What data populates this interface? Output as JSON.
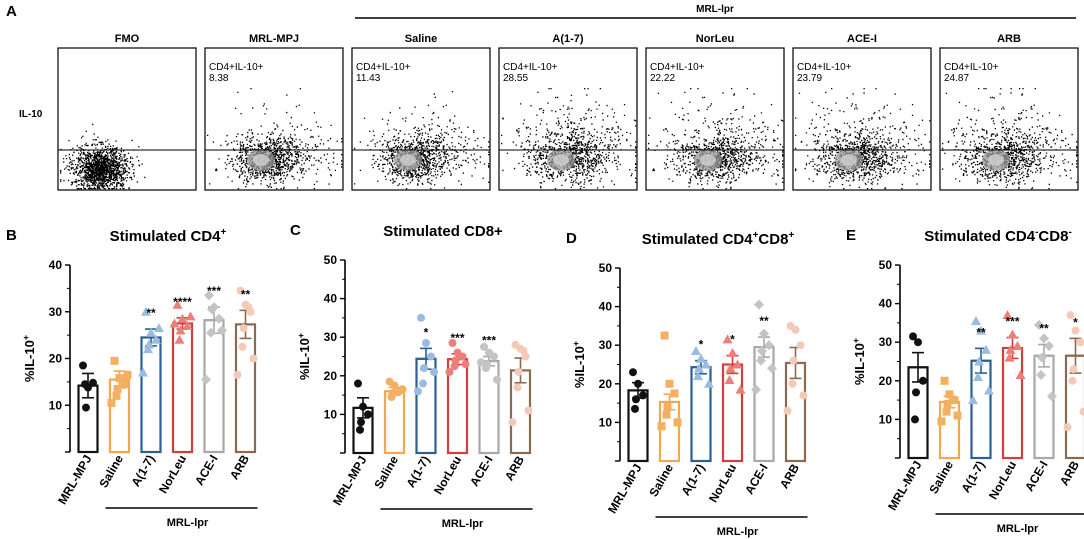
{
  "figure": {
    "panel_a_letter": "A",
    "group_label": "MRL-lpr",
    "y_label": "IL-10",
    "flow_panels": [
      {
        "title": "FMO",
        "gate": "",
        "value": ""
      },
      {
        "title": "MRL-MPJ",
        "gate": "CD4+IL-10+",
        "value": "8.38"
      },
      {
        "title": "Saline",
        "gate": "CD4+IL-10+",
        "value": "11.43"
      },
      {
        "title": "A(1-7)",
        "gate": "CD4+IL-10+",
        "value": "28.55"
      },
      {
        "title": "NorLeu",
        "gate": "CD4+IL-10+",
        "value": "22.22"
      },
      {
        "title": "ACE-I",
        "gate": "CD4+IL-10+",
        "value": "23.79"
      },
      {
        "title": "ARB",
        "gate": "CD4+IL-10+",
        "value": "24.87"
      }
    ]
  },
  "colors": {
    "MRL-MPJ": "#111111",
    "Saline": "#f3a84f",
    "A(1-7)": "#2c5f95",
    "NorLeu": "#d23d3d",
    "ACE-I": "#a8a8a8",
    "ARB": "#8c6a52"
  },
  "marker_colors": {
    "MRL-MPJ": "#111111",
    "Saline": "#f3b062",
    "A(1-7)": "#9bbbe0",
    "NorLeu": "#ec7f7a",
    "ACE-I": "#c4c4c4",
    "ARB": "#f3c9b8"
  },
  "chart_data": [
    {
      "type": "bar",
      "letter": "B",
      "title": "Stimulated CD4",
      "title_sup": "+",
      "ylabel": "%IL-10",
      "ylabel_sup": "+",
      "ylim": [
        0,
        40
      ],
      "yticks": [
        10,
        20,
        30,
        40
      ],
      "categories": [
        "MRL-MPJ",
        "Saline",
        "A(1-7)",
        "NorLeu",
        "ACE-I",
        "ARB"
      ],
      "group_label": "MRL-lpr",
      "values": [
        14.2,
        15.5,
        24.5,
        27.5,
        28.2,
        27.3
      ],
      "errors": [
        2.6,
        1.8,
        1.8,
        1.2,
        2.8,
        3.0
      ],
      "significance": [
        "",
        "",
        "**",
        "****",
        "***",
        "**"
      ],
      "points": [
        [
          18.5,
          13.8,
          14.8,
          9.5,
          14.5
        ],
        [
          19.5,
          15.8,
          14.5,
          13.5,
          12.0,
          16.5,
          10.5
        ],
        [
          30.0,
          25.5,
          24.0,
          23.0,
          22.0,
          26.5,
          17.0
        ],
        [
          31.5,
          28.5,
          27.0,
          26.0,
          24.0,
          29.0,
          27.5
        ],
        [
          33.5,
          31.0,
          28.5,
          30.5,
          25.5,
          26.0,
          15.5
        ],
        [
          34.5,
          31.5,
          30.0,
          26.5,
          22.5,
          20.0,
          16.5,
          31.0
        ]
      ],
      "markers": [
        "circle",
        "square",
        "triangle",
        "triangle",
        "diamond",
        "circle"
      ]
    },
    {
      "type": "bar",
      "letter": "C",
      "title": "Stimulated CD8+",
      "title_sup": "",
      "ylabel": "%IL-10",
      "ylabel_sup": "+",
      "ylim": [
        0,
        50
      ],
      "yticks": [
        10,
        20,
        30,
        40,
        50
      ],
      "categories": [
        "MRL-MPJ",
        "Saline",
        "A(1-7)",
        "NorLeu",
        "ACE-I",
        "ARB"
      ],
      "group_label": "MRL-lpr",
      "values": [
        11.7,
        16.0,
        24.4,
        24.3,
        23.8,
        21.4
      ],
      "errors": [
        2.6,
        1.0,
        2.7,
        1.4,
        1.2,
        3.2
      ],
      "significance": [
        "",
        "",
        "*",
        "***",
        "***",
        ""
      ],
      "points": [
        [
          18.0,
          12.0,
          10.0,
          8.0,
          6.0
        ],
        [
          18.5,
          17.5,
          16.0,
          15.5,
          14.5,
          16.5
        ],
        [
          35.0,
          28.5,
          25.0,
          22.0,
          18.0,
          21.0,
          16.0
        ],
        [
          28.5,
          26.0,
          25.0,
          24.0,
          22.5,
          23.0,
          21.0
        ],
        [
          27.5,
          26.0,
          25.0,
          23.0,
          22.0,
          19.0,
          23.5
        ],
        [
          28.0,
          27.0,
          25.0,
          21.0,
          17.0,
          11.0,
          8.0,
          26.5
        ]
      ],
      "markers": [
        "circle",
        "circle",
        "circle",
        "circle",
        "circle",
        "circle"
      ]
    },
    {
      "type": "bar",
      "letter": "D",
      "title": "Stimulated CD4",
      "title_sup": "+",
      "title_b": "CD8",
      "title_b_sup": "+",
      "ylabel": "%IL-10",
      "ylabel_sup": "+",
      "ylim": [
        0,
        50
      ],
      "yticks": [
        10,
        20,
        30,
        40,
        50
      ],
      "categories": [
        "MRL-MPJ",
        "Saline",
        "A(1-7)",
        "NorLeu",
        "ACE-I",
        "ARB"
      ],
      "group_label": "MRL-lpr",
      "values": [
        18.3,
        15.3,
        24.3,
        25.0,
        29.5,
        25.4
      ],
      "errors": [
        2.0,
        2.0,
        1.7,
        2.3,
        2.6,
        4.0
      ],
      "significance": [
        "",
        "",
        "*",
        "*",
        "**",
        ""
      ],
      "points": [
        [
          23.0,
          20.0,
          17.0,
          16.0,
          13.5
        ],
        [
          32.5,
          20.0,
          17.5,
          14.0,
          12.0,
          10.0,
          9.0
        ],
        [
          28.5,
          26.5,
          25.0,
          24.0,
          22.0,
          20.0
        ],
        [
          31.5,
          28.0,
          25.0,
          24.0,
          21.0,
          18.5
        ],
        [
          40.5,
          33.0,
          30.0,
          28.5,
          26.0,
          24.0,
          18.5
        ],
        [
          35.0,
          34.0,
          30.0,
          26.0,
          20.0,
          17.0,
          13.0
        ]
      ],
      "markers": [
        "circle",
        "square",
        "triangle",
        "triangle",
        "diamond",
        "circle"
      ]
    },
    {
      "type": "bar",
      "letter": "E",
      "title": "Stimulated CD4",
      "title_sup": "-",
      "title_b": "CD8",
      "title_b_sup": "-",
      "ylabel": "%IL-10",
      "ylabel_sup": "+",
      "ylim": [
        0,
        50
      ],
      "yticks": [
        10,
        20,
        30,
        40,
        50
      ],
      "categories": [
        "MRL-MPJ",
        "Saline",
        "A(1-7)",
        "NorLeu",
        "ACE-I",
        "ARB"
      ],
      "group_label": "MRL-lpr",
      "values": [
        23.5,
        14.5,
        25.2,
        28.5,
        26.5,
        26.5
      ],
      "errors": [
        3.8,
        1.5,
        3.2,
        2.7,
        2.9,
        4.5
      ],
      "significance": [
        "",
        "",
        "**",
        "***",
        "**",
        "*"
      ],
      "points": [
        [
          31.5,
          30.0,
          20.0,
          17.0,
          10.0
        ],
        [
          20.0,
          16.5,
          15.0,
          14.0,
          12.0,
          11.0,
          9.5
        ],
        [
          35.5,
          33.0,
          28.0,
          25.0,
          21.0,
          17.5,
          15.0
        ],
        [
          37.0,
          32.0,
          29.0,
          28.0,
          26.0,
          21.5
        ],
        [
          34.5,
          31.0,
          29.0,
          26.0,
          21.5,
          16.0
        ],
        [
          37.0,
          33.0,
          30.0,
          23.0,
          20.0,
          12.0,
          8.0
        ]
      ],
      "markers": [
        "circle",
        "square",
        "triangle",
        "triangle",
        "diamond",
        "circle"
      ]
    }
  ]
}
